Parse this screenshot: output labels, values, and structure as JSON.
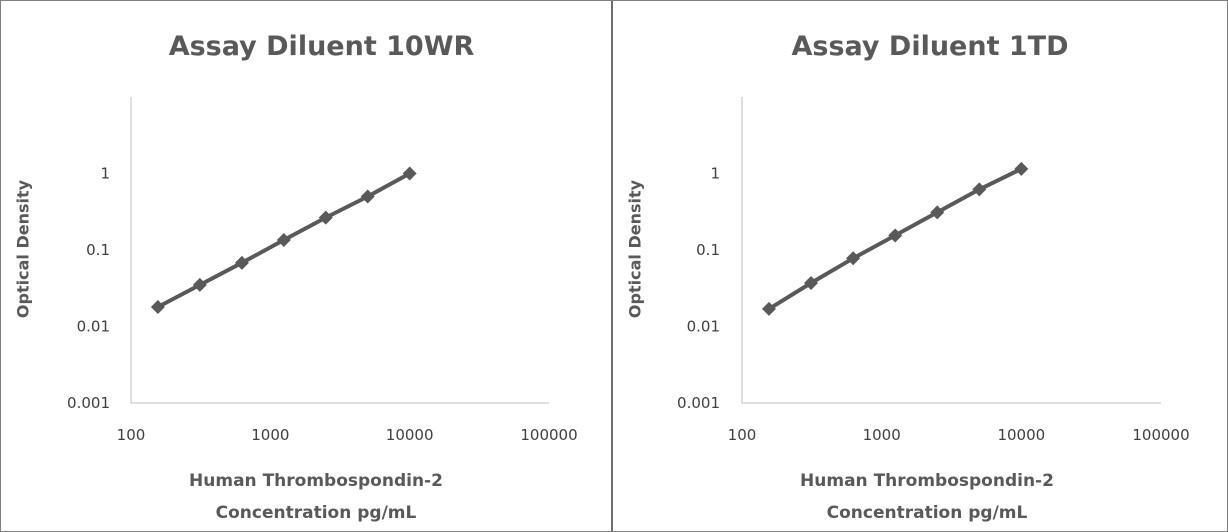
{
  "chart_data": [
    {
      "type": "line",
      "title": "Assay Diluent 10WR",
      "xlabel": [
        "Human Thrombospondin-2",
        "Concentration pg/mL"
      ],
      "ylabel": "Optical Density",
      "xscale": "log",
      "yscale": "log",
      "xlim": [
        100,
        100000
      ],
      "ylim": [
        0.001,
        10
      ],
      "xticks": [
        "100",
        "1000",
        "10000",
        "100000"
      ],
      "yticks": [
        "0.001",
        "0.01",
        "0.1",
        "1"
      ],
      "grid": false,
      "series": [
        {
          "x": [
            156,
            312,
            625,
            1250,
            2500,
            5000,
            10000
          ],
          "y": [
            0.018,
            0.035,
            0.068,
            0.135,
            0.265,
            0.5,
            1.0
          ],
          "color": "#595959",
          "marker": "diamond"
        }
      ]
    },
    {
      "type": "line",
      "title": "Assay Diluent 1TD",
      "xlabel": [
        "Human Thrombospondin-2",
        "Concentration pg/mL"
      ],
      "ylabel": "Optical Density",
      "xscale": "log",
      "yscale": "log",
      "xlim": [
        100,
        100000
      ],
      "ylim": [
        0.001,
        10
      ],
      "xticks": [
        "100",
        "1000",
        "10000",
        "100000"
      ],
      "yticks": [
        "0.001",
        "0.01",
        "0.1",
        "1"
      ],
      "grid": false,
      "series": [
        {
          "x": [
            156,
            312,
            625,
            1250,
            2500,
            5000,
            10000
          ],
          "y": [
            0.017,
            0.037,
            0.078,
            0.155,
            0.31,
            0.62,
            1.15
          ],
          "color": "#595959",
          "marker": "diamond"
        }
      ]
    }
  ]
}
